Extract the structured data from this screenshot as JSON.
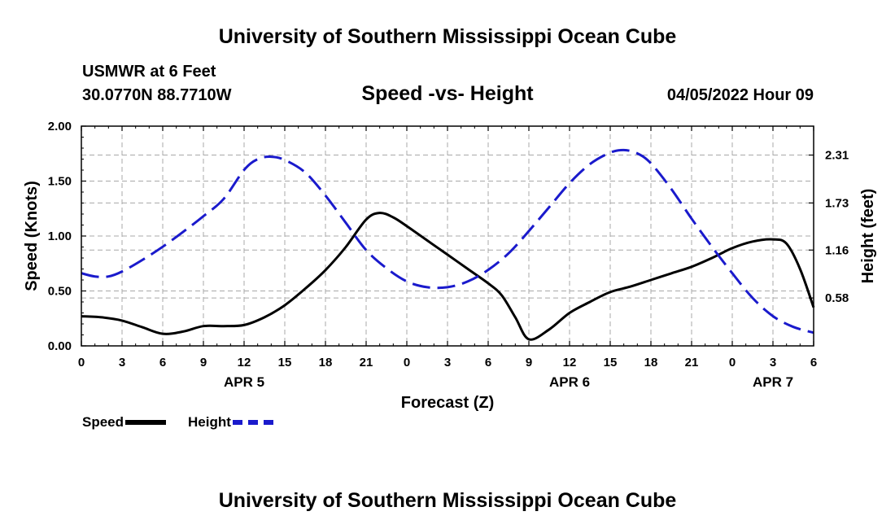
{
  "header": {
    "title": "University of Southern Mississippi Ocean Cube",
    "station": "USMWR at 6 Feet",
    "coords": "30.0770N  88.7710W",
    "chart_title": "Speed -vs- Height",
    "datetime": "04/05/2022 Hour 09"
  },
  "footer": {
    "title": "University of Southern Mississippi Ocean Cube"
  },
  "legend": {
    "speed_label": "Speed",
    "height_label": "Height"
  },
  "colors": {
    "speed": "#000000",
    "height": "#1a1acc",
    "grid": "#a8a8a8"
  },
  "chart_data": {
    "type": "line",
    "title": "Speed -vs- Height",
    "xlabel": "Forecast (Z)",
    "ylabel": "Speed (Knots)",
    "y2label": "Height (feet)",
    "x_range_hours": [
      0,
      54
    ],
    "ylim": [
      0,
      2.0
    ],
    "y2lim": [
      0,
      2.66
    ],
    "y_ticks": [
      "0.00",
      "0.50",
      "1.00",
      "1.50",
      "2.00"
    ],
    "y_tick_values": [
      0,
      0.5,
      1.0,
      1.5,
      2.0
    ],
    "y2_ticks": [
      "0.58",
      "1.16",
      "1.73",
      "2.31"
    ],
    "y2_tick_values": [
      0.58,
      1.16,
      1.73,
      2.31
    ],
    "x_ticks": [
      "0",
      "3",
      "6",
      "9",
      "12",
      "15",
      "18",
      "21",
      "0",
      "3",
      "6",
      "9",
      "12",
      "15",
      "18",
      "21",
      "0",
      "3",
      "6"
    ],
    "date_labels": [
      {
        "label": "APR 5",
        "hour": 12
      },
      {
        "label": "APR 6",
        "hour": 36
      },
      {
        "label": "APR 7",
        "hour": 51
      }
    ],
    "series": [
      {
        "name": "Speed",
        "axis": "left",
        "x": [
          0,
          1.5,
          3,
          4.5,
          6,
          7.5,
          9,
          10.5,
          12,
          13.5,
          15,
          16.5,
          18,
          19.5,
          21,
          22,
          23,
          24,
          25.5,
          27,
          28.5,
          30,
          31,
          32,
          33,
          34.5,
          36,
          37.5,
          39,
          40.5,
          42,
          43.5,
          45,
          46.5,
          48,
          49.5,
          51,
          52,
          53,
          54
        ],
        "values": [
          0.27,
          0.26,
          0.23,
          0.17,
          0.11,
          0.13,
          0.18,
          0.18,
          0.19,
          0.26,
          0.37,
          0.52,
          0.69,
          0.9,
          1.15,
          1.21,
          1.17,
          1.09,
          0.96,
          0.83,
          0.7,
          0.57,
          0.46,
          0.26,
          0.06,
          0.15,
          0.3,
          0.4,
          0.49,
          0.54,
          0.6,
          0.66,
          0.72,
          0.8,
          0.89,
          0.95,
          0.97,
          0.93,
          0.7,
          0.35
        ]
      },
      {
        "name": "Height",
        "axis": "right",
        "x": [
          0,
          1,
          2,
          3,
          4.5,
          6,
          7.5,
          9,
          10.5,
          12,
          13,
          14,
          15,
          16.5,
          18,
          19.5,
          21,
          22.5,
          24,
          25.5,
          27,
          28.5,
          30,
          31.5,
          33,
          34.5,
          36,
          37.5,
          39,
          40,
          41,
          42,
          43.5,
          45,
          46.5,
          48,
          49.5,
          51,
          52.5,
          54
        ],
        "values": [
          0.88,
          0.84,
          0.84,
          0.9,
          1.04,
          1.2,
          1.38,
          1.57,
          1.78,
          2.13,
          2.26,
          2.29,
          2.25,
          2.1,
          1.82,
          1.49,
          1.16,
          0.94,
          0.78,
          0.71,
          0.71,
          0.78,
          0.92,
          1.12,
          1.39,
          1.68,
          1.97,
          2.2,
          2.34,
          2.37,
          2.33,
          2.21,
          1.9,
          1.54,
          1.2,
          0.88,
          0.58,
          0.36,
          0.23,
          0.16
        ]
      }
    ]
  }
}
